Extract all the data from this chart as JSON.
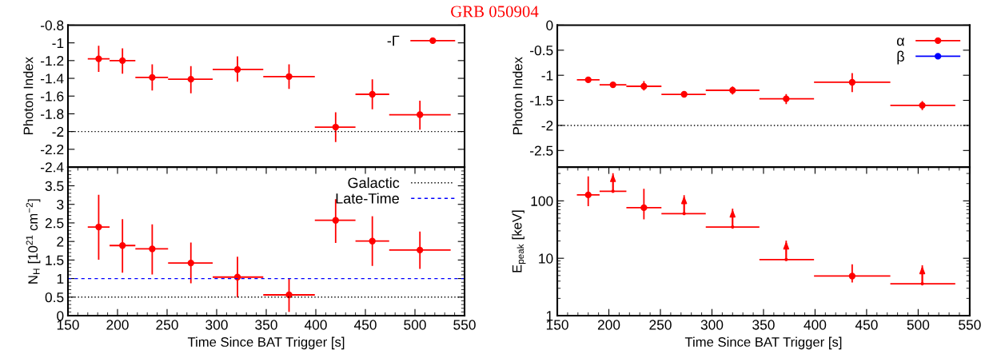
{
  "chart_data": [
    {
      "type": "scatter",
      "title": "GRB 050904",
      "ylabel": "Photon Index",
      "xlim": [
        150,
        550
      ],
      "ylim": [
        -2.4,
        -0.8
      ],
      "yticks": [
        -2.4,
        -2.2,
        -2,
        -1.8,
        -1.6,
        -1.4,
        -1.2,
        -1,
        -0.8
      ],
      "tick_labels": "y",
      "legend": "top right",
      "grid": false,
      "x": [
        181,
        205,
        235,
        274,
        321,
        373,
        420,
        457,
        505
      ],
      "series": [
        {
          "name": "-Γ",
          "color": "#ff0000",
          "marker": "circle",
          "values": [
            -1.18,
            -1.2,
            -1.39,
            -1.41,
            -1.3,
            -1.38,
            -1.95,
            -1.58,
            -1.81
          ],
          "errors": [
            [
              -1.32,
              -1.04
            ],
            [
              -1.34,
              -1.07
            ],
            [
              -1.53,
              -1.25
            ],
            [
              -1.56,
              -1.27
            ],
            [
              -1.43,
              -1.16
            ],
            [
              -1.51,
              -1.25
            ],
            [
              -2.11,
              -1.79
            ],
            [
              -1.74,
              -1.42
            ],
            [
              -1.97,
              -1.66
            ]
          ],
          "xerrors": [
            [
              170,
              192
            ],
            [
              192,
              218
            ],
            [
              218,
              251
            ],
            [
              251,
              296
            ],
            [
              296,
              347
            ],
            [
              347,
              399
            ],
            [
              399,
              440
            ],
            [
              440,
              474
            ],
            [
              474,
              536
            ]
          ]
        }
      ],
      "ref_lines": [
        {
          "axis": "y",
          "value": -2,
          "color": "#000000",
          "line_style": "dotted"
        }
      ]
    },
    {
      "type": "scatter",
      "xlabel": "Time Since BAT Trigger [s]",
      "ylabel": "N$_{H}$ [10$^{21}$ cm$^{−2}$]",
      "xlim": [
        150,
        550
      ],
      "xticks": [
        150,
        200,
        250,
        300,
        350,
        400,
        450,
        500,
        550
      ],
      "ylim": [
        0,
        4
      ],
      "yticks": [
        0,
        0.5,
        1,
        1.5,
        2,
        2.5,
        3,
        3.5
      ],
      "legend": "top right",
      "grid": false,
      "x": [
        181,
        205,
        235,
        274,
        321,
        373,
        420,
        457,
        505
      ],
      "series": [
        {
          "color": "#ff0000",
          "marker": "circle",
          "values": [
            2.39,
            1.89,
            1.8,
            1.42,
            1.04,
            0.56,
            2.57,
            2.01,
            1.77
          ],
          "errors": [
            [
              1.53,
              3.24
            ],
            [
              1.18,
              2.58
            ],
            [
              1.13,
              2.44
            ],
            [
              0.89,
              1.95
            ],
            [
              0.51,
              1.57
            ],
            [
              0.12,
              0.99
            ],
            [
              1.98,
              3.12
            ],
            [
              1.36,
              2.66
            ],
            [
              1.28,
              2.25
            ]
          ],
          "xerrors": [
            [
              170,
              192
            ],
            [
              192,
              218
            ],
            [
              218,
              251
            ],
            [
              251,
              296
            ],
            [
              296,
              347
            ],
            [
              347,
              399
            ],
            [
              399,
              440
            ],
            [
              440,
              474
            ],
            [
              474,
              536
            ]
          ]
        }
      ],
      "ref_lines": [
        {
          "axis": "y",
          "value": 0.5,
          "label": "Galactic",
          "color": "#000000",
          "line_style": "dotted"
        },
        {
          "axis": "y",
          "value": 1,
          "label": "Late-Time",
          "color": "#0000ff",
          "line_style": "dashed"
        }
      ]
    },
    {
      "type": "scatter",
      "ylabel": "Photon Index",
      "xlim": [
        150,
        550
      ],
      "ylim": [
        -2.83,
        0
      ],
      "yticks": [
        -2.5,
        -2,
        -1.5,
        -1,
        -0.5,
        0
      ],
      "tick_labels": "y",
      "legend": "top right",
      "grid": false,
      "x": [
        180,
        204,
        234,
        273,
        320,
        372,
        436,
        504
      ],
      "series": [
        {
          "name": "α",
          "color": "#ff0000",
          "marker": "circle",
          "values": [
            -1.09,
            -1.19,
            -1.22,
            -1.38,
            -1.3,
            -1.47,
            -1.14,
            -1.6
          ],
          "errors": [
            [
              -1.12,
              -1.06
            ],
            [
              -1.21,
              -1.17
            ],
            [
              -1.29,
              -1.13
            ],
            [
              -1.4,
              -1.36
            ],
            [
              -1.37,
              -1.24
            ],
            [
              -1.56,
              -1.39
            ],
            [
              -1.32,
              -0.97
            ],
            [
              -1.68,
              -1.53
            ]
          ],
          "xerrors": [
            [
              169,
              191
            ],
            [
              191,
              217
            ],
            [
              217,
              251
            ],
            [
              251,
              294
            ],
            [
              294,
              346
            ],
            [
              346,
              399
            ],
            [
              399,
              473
            ],
            [
              473,
              536
            ]
          ]
        },
        {
          "name": "β",
          "color": "#0000ff",
          "marker": "circle",
          "values": [
            null,
            null,
            null,
            null,
            null,
            null,
            null,
            null
          ]
        }
      ],
      "ref_lines": [
        {
          "axis": "y",
          "value": -2,
          "color": "#000000",
          "line_style": "dotted"
        }
      ]
    },
    {
      "type": "scatter",
      "xlabel": "Time Since BAT Trigger [s]",
      "ylabel": "E$_{peak}$ [keV]",
      "log": true,
      "xlim": [
        150,
        550
      ],
      "xticks": [
        150,
        200,
        250,
        300,
        350,
        400,
        450,
        500,
        550
      ],
      "ylim": [
        1,
        385
      ],
      "yticks": [
        1,
        10,
        100
      ],
      "grid": false,
      "x": [
        180,
        204,
        234,
        273,
        320,
        372,
        436,
        504
      ],
      "series": [
        {
          "color": "#ff0000",
          "marker": "circle",
          "values": [
            127,
            null,
            76,
            null,
            null,
            null,
            4.9,
            null
          ],
          "errors": [
            [
              83,
              259
            ],
            null,
            [
              49,
              158
            ],
            null,
            null,
            null,
            [
              3.9,
              7.6
            ],
            null
          ],
          "xerrors": [
            [
              169,
              191
            ],
            null,
            [
              217,
              251
            ],
            null,
            null,
            null,
            [
              399,
              473
            ],
            null
          ]
        },
        {
          "color": "#ff0000",
          "marker": "none",
          "values": [
            null,
            147,
            null,
            60,
            35,
            9.5,
            null,
            3.6
          ],
          "errors": [
            null,
            [
              147,
              295
            ],
            null,
            [
              60,
              122
            ],
            [
              35,
              71
            ],
            [
              9.5,
              19.7
            ],
            null,
            [
              3.6,
              7.3
            ]
          ],
          "xerrors": [
            null,
            [
              191,
              217
            ],
            null,
            [
              251,
              294
            ],
            [
              294,
              346
            ],
            [
              346,
              399
            ],
            null,
            [
              473,
              536
            ]
          ]
        }
      ]
    }
  ]
}
